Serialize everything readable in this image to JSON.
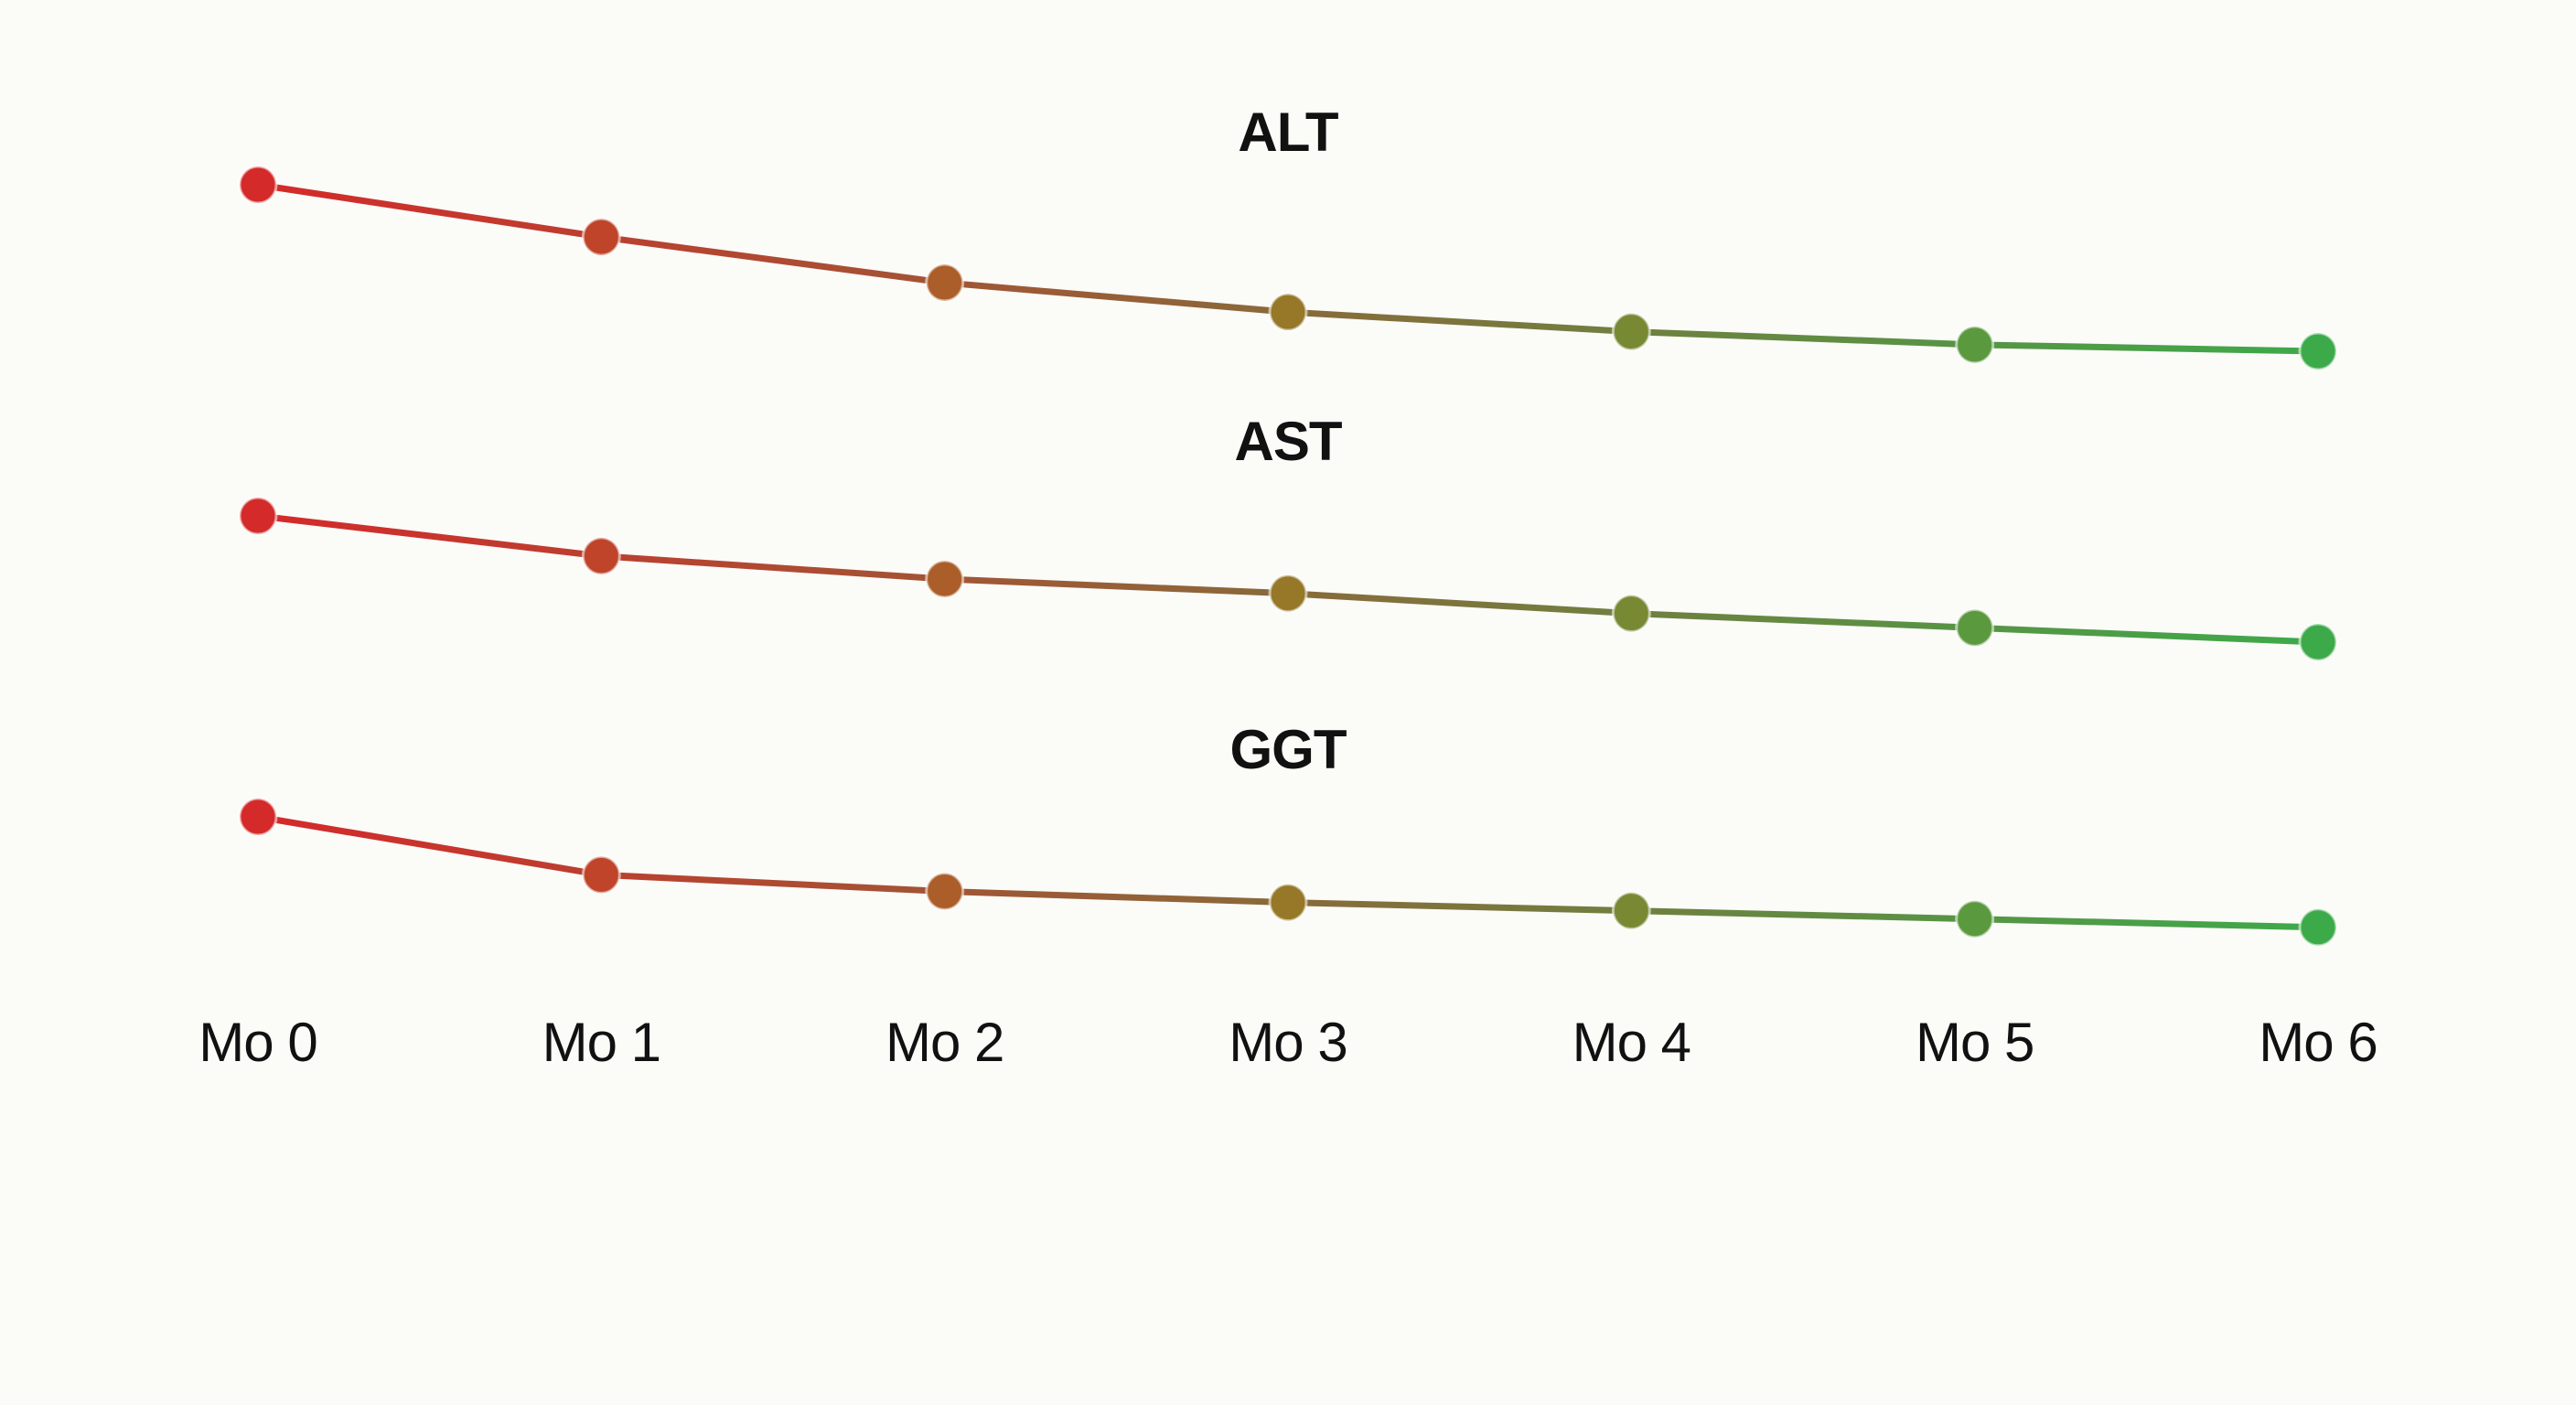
{
  "chart_data": {
    "type": "line",
    "categories": [
      "Mo 0",
      "Mo 1",
      "Mo 2",
      "Mo 3",
      "Mo 4",
      "Mo 5",
      "Mo 6"
    ],
    "series": [
      {
        "name": "ALT",
        "values": [
          100,
          84,
          70,
          61,
          55,
          51,
          49
        ]
      },
      {
        "name": "AST",
        "values": [
          100,
          86,
          78,
          73,
          66,
          61,
          56
        ]
      },
      {
        "name": "GGT",
        "values": [
          100,
          79,
          73,
          69,
          66,
          63,
          60
        ]
      }
    ],
    "xlabel": "",
    "ylabel": "",
    "grid": false,
    "legend": "none",
    "colors": {
      "start": "#d42a2a",
      "end": "#3daa4a"
    }
  }
}
